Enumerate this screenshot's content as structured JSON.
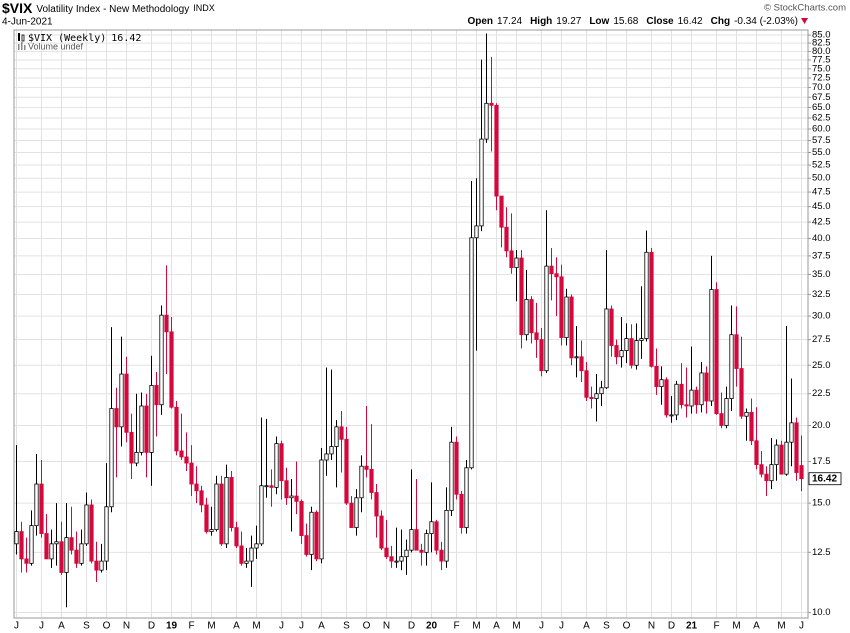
{
  "chart_data": {
    "type": "candlestick",
    "symbol": "$VIX",
    "title": "Volatility Index - New Methodology",
    "exchange": "INDX",
    "date": "4-Jun-2021",
    "credit": "© StockCharts.com",
    "series_label": "$VIX (Weekly)",
    "volume_label": "Volume undef",
    "quote_labels": {
      "open": "Open",
      "high": "High",
      "low": "Low",
      "close": "Close",
      "change": "Chg"
    },
    "change_label": "-0.34 (-2.03%)",
    "log_scale": true,
    "grid": true,
    "up_color": "#000000",
    "down_color": "#d4083c",
    "ylim": [
      9.8,
      86.6
    ],
    "yticks": [
      {
        "value": 10,
        "label": "10.0"
      },
      12.5,
      {
        "value": 15,
        "label": "15.0"
      },
      17.5,
      {
        "value": 20,
        "label": "20.0"
      },
      22.5,
      {
        "value": 25,
        "label": "25.0"
      },
      27.5,
      {
        "value": 30,
        "label": "30.0"
      },
      32.5,
      {
        "value": 35,
        "label": "35.0"
      },
      37.5,
      {
        "value": 40,
        "label": "40.0"
      },
      42.5,
      {
        "value": 45,
        "label": "45.0"
      },
      47.5,
      {
        "value": 50,
        "label": "50.0"
      },
      52.5,
      {
        "value": 55,
        "label": "55.0"
      },
      57.5,
      {
        "value": 60,
        "label": "60.0"
      },
      62.5,
      {
        "value": 65,
        "label": "65.0"
      },
      67.5,
      {
        "value": 70,
        "label": "70.0"
      },
      72.5,
      {
        "value": 75,
        "label": "75.0"
      },
      77.5,
      {
        "value": 80,
        "label": "80.0"
      },
      82.5,
      {
        "value": 85,
        "label": "85.0"
      }
    ],
    "categories": [
      "J",
      null,
      null,
      null,
      null,
      "J",
      null,
      null,
      null,
      "A",
      null,
      null,
      null,
      null,
      "S",
      null,
      null,
      null,
      "O",
      null,
      null,
      null,
      "N",
      null,
      null,
      null,
      null,
      "D",
      null,
      null,
      null,
      "19",
      null,
      null,
      null,
      "F",
      null,
      null,
      null,
      "M",
      null,
      null,
      null,
      null,
      "A",
      null,
      null,
      null,
      "M",
      null,
      null,
      null,
      null,
      "J",
      null,
      null,
      null,
      "J",
      null,
      null,
      null,
      "A",
      null,
      null,
      null,
      null,
      "S",
      null,
      null,
      null,
      "O",
      null,
      null,
      null,
      "N",
      null,
      null,
      null,
      null,
      "D",
      null,
      null,
      null,
      "20",
      null,
      null,
      null,
      null,
      "F",
      null,
      null,
      null,
      "M",
      null,
      null,
      null,
      "A",
      null,
      null,
      null,
      "M",
      null,
      null,
      null,
      null,
      "J",
      null,
      null,
      null,
      "J",
      null,
      null,
      null,
      null,
      "A",
      null,
      null,
      null,
      "S",
      null,
      null,
      null,
      "O",
      null,
      null,
      null,
      null,
      "N",
      null,
      null,
      null,
      "D",
      null,
      null,
      null,
      "21",
      null,
      null,
      null,
      null,
      "F",
      null,
      null,
      null,
      "M",
      null,
      null,
      null,
      "A",
      null,
      null,
      null,
      null,
      "M",
      null,
      null,
      null,
      "J"
    ],
    "open": [
      12.9,
      13.5,
      12.2,
      12.0,
      13.8,
      16.1,
      13.4,
      12.2,
      12.9,
      13.0,
      11.6,
      13.2,
      12.6,
      12.0,
      12.9,
      14.9,
      12.1,
      11.7,
      12.1,
      14.8,
      21.3,
      19.9,
      24.2,
      19.5,
      17.4,
      18.1,
      21.5,
      18.1,
      23.2,
      21.6,
      30.1,
      28.3,
      21.4,
      18.2,
      17.8,
      17.4,
      16.1,
      15.7,
      14.9,
      13.5,
      13.6,
      16.1,
      12.9,
      16.5,
      13.7,
      12.8,
      12.0,
      12.1,
      12.7,
      12.9,
      16.0,
      16.0,
      15.9,
      18.7,
      16.3,
      15.3,
      15.4,
      15.1,
      13.3,
      12.4,
      14.5,
      12.2,
      17.6,
      18.0,
      18.5,
      19.9,
      19.0,
      15.0,
      13.7,
      15.3,
      17.2,
      17.0,
      15.6,
      14.3,
      12.7,
      12.3,
      12.1,
      12.1,
      12.3,
      12.6,
      13.6,
      12.6,
      12.5,
      13.4,
      14.0,
      12.6,
      12.1,
      14.6,
      18.8,
      15.5,
      13.7,
      17.1,
      40.1,
      41.9,
      57.8,
      66.0,
      65.5,
      46.8,
      41.7,
      38.2,
      35.9,
      37.2,
      28.0,
      31.9,
      28.2,
      27.5,
      24.5,
      36.1,
      35.1,
      34.7,
      27.7,
      32.2,
      25.7,
      25.8,
      24.5,
      22.2,
      22.1,
      22.5,
      23.0,
      30.8,
      26.9,
      25.8,
      26.4,
      27.6,
      25.0,
      27.4,
      27.6,
      38.0,
      24.9,
      23.1,
      23.7,
      20.8,
      20.8,
      23.3,
      21.6,
      21.5,
      22.8,
      21.6,
      24.3,
      21.9,
      33.1,
      20.9,
      20.0,
      22.1,
      28.0,
      24.7,
      20.7,
      21.0,
      18.9,
      17.3,
      16.7,
      16.3,
      17.3,
      18.6,
      16.7,
      18.8,
      20.2,
      17.24
    ],
    "high": [
      18.6,
      14.0,
      13.2,
      14.6,
      18.0,
      17.6,
      14.4,
      13.6,
      15.0,
      14.0,
      15.0,
      14.8,
      13.5,
      13.6,
      15.6,
      15.2,
      13.0,
      12.9,
      17.4,
      28.8,
      23.0,
      27.8,
      25.8,
      20.9,
      22.5,
      22.6,
      22.5,
      25.9,
      24.4,
      31.2,
      36.2,
      29.9,
      21.9,
      20.9,
      19.5,
      18.6,
      17.2,
      16.0,
      15.3,
      14.8,
      16.6,
      16.6,
      17.3,
      16.9,
      14.0,
      13.5,
      12.7,
      13.3,
      13.8,
      20.6,
      20.5,
      17.0,
      19.2,
      18.9,
      17.1,
      16.4,
      17.5,
      15.2,
      13.9,
      14.8,
      14.6,
      18.4,
      24.8,
      24.6,
      20.4,
      21.1,
      19.9,
      15.4,
      15.8,
      17.9,
      21.5,
      20.1,
      16.1,
      14.6,
      14.1,
      12.8,
      13.7,
      13.6,
      13.1,
      17.0,
      16.4,
      12.9,
      13.6,
      16.2,
      14.1,
      13.0,
      15.9,
      19.9,
      19.2,
      15.7,
      17.6,
      49.5,
      50.0,
      77.6,
      85.5,
      78.4,
      66.0,
      46.8,
      44.9,
      43.9,
      38.3,
      38.3,
      35.6,
      32.3,
      31.5,
      28.7,
      44.4,
      38.6,
      37.3,
      36.3,
      33.2,
      32.5,
      28.9,
      27.4,
      25.3,
      23.1,
      24.2,
      23.6,
      38.3,
      31.2,
      27.5,
      29.9,
      29.2,
      29.1,
      29.2,
      33.5,
      41.2,
      38.6,
      26.6,
      24.9,
      23.9,
      22.3,
      23.6,
      25.2,
      24.8,
      26.8,
      23.1,
      25.3,
      24.9,
      37.5,
      34.0,
      22.6,
      23.1,
      31.2,
      31.1,
      27.8,
      21.3,
      22.1,
      21.4,
      18.2,
      17.2,
      19.1,
      19.0,
      18.9,
      28.9,
      23.8,
      20.6,
      19.27
    ],
    "low": [
      12.4,
      11.6,
      11.6,
      11.9,
      13.3,
      13.2,
      12.2,
      11.8,
      11.9,
      11.5,
      10.2,
      12.4,
      11.8,
      11.9,
      12.8,
      12.0,
      11.2,
      11.6,
      11.7,
      14.5,
      16.5,
      18.5,
      18.8,
      16.4,
      17.2,
      17.9,
      16.5,
      16.0,
      19.2,
      20.8,
      24.2,
      21.3,
      17.9,
      17.6,
      16.9,
      15.4,
      15.0,
      14.5,
      13.4,
      13.3,
      13.5,
      12.8,
      12.7,
      13.5,
      12.7,
      11.9,
      11.8,
      11.0,
      12.2,
      12.8,
      15.3,
      14.8,
      15.5,
      15.2,
      14.9,
      13.5,
      14.4,
      12.9,
      12.3,
      11.7,
      12.1,
      12.0,
      16.6,
      17.6,
      15.9,
      16.8,
      14.9,
      13.7,
      13.3,
      14.5,
      16.5,
      15.2,
      13.2,
      12.6,
      12.2,
      11.8,
      11.8,
      11.7,
      11.5,
      12.5,
      12.6,
      11.9,
      11.9,
      12.5,
      12.4,
      11.7,
      11.8,
      14.3,
      15.2,
      13.4,
      13.4,
      17.0,
      26.4,
      41.1,
      57.0,
      55.2,
      44.4,
      38.7,
      37.3,
      35.1,
      31.7,
      26.6,
      27.4,
      27.1,
      25.7,
      24.0,
      24.3,
      31.8,
      30.0,
      26.9,
      26.9,
      25.0,
      23.9,
      23.5,
      21.9,
      21.3,
      20.3,
      21.5,
      22.9,
      25.8,
      25.1,
      24.8,
      25.2,
      24.7,
      24.6,
      25.6,
      27.3,
      24.8,
      22.4,
      21.6,
      20.6,
      20.2,
      20.4,
      21.3,
      20.6,
      20.9,
      20.9,
      21.0,
      20.9,
      21.5,
      20.8,
      19.8,
      19.8,
      21.1,
      23.1,
      20.5,
      18.9,
      18.6,
      17.0,
      16.5,
      15.4,
      15.8,
      16.3,
      16.7,
      16.6,
      17.2,
      16.3,
      15.68
    ],
    "close": [
      13.5,
      12.2,
      12.0,
      13.8,
      16.1,
      13.4,
      12.2,
      12.9,
      13.0,
      11.6,
      13.2,
      12.6,
      12.0,
      12.9,
      14.9,
      12.1,
      11.7,
      12.1,
      14.8,
      21.3,
      19.9,
      24.2,
      19.5,
      17.4,
      18.1,
      21.5,
      18.1,
      23.2,
      21.6,
      30.1,
      28.3,
      21.4,
      18.2,
      17.8,
      17.4,
      16.1,
      15.7,
      14.9,
      13.5,
      13.6,
      16.1,
      12.9,
      16.5,
      13.7,
      12.8,
      12.0,
      12.1,
      12.7,
      12.9,
      16.0,
      16.0,
      15.9,
      18.7,
      16.3,
      15.3,
      15.4,
      15.1,
      13.3,
      12.4,
      14.5,
      12.2,
      17.6,
      18.0,
      18.5,
      19.9,
      19.0,
      15.0,
      13.7,
      15.3,
      17.2,
      17.0,
      15.6,
      14.3,
      12.7,
      12.3,
      12.1,
      12.1,
      12.3,
      12.6,
      13.6,
      12.6,
      12.5,
      13.4,
      14.0,
      12.6,
      12.1,
      14.6,
      18.8,
      15.5,
      13.7,
      17.1,
      40.1,
      41.9,
      57.8,
      66.0,
      65.5,
      46.8,
      41.7,
      38.2,
      35.9,
      37.2,
      28.0,
      31.9,
      28.2,
      27.5,
      24.5,
      36.1,
      35.1,
      34.7,
      27.7,
      32.2,
      25.7,
      25.8,
      24.5,
      22.2,
      22.1,
      22.5,
      23.0,
      30.8,
      26.9,
      25.8,
      26.4,
      27.6,
      25.0,
      27.4,
      27.6,
      38.0,
      24.9,
      23.1,
      23.7,
      20.8,
      20.8,
      23.3,
      21.6,
      21.5,
      22.8,
      21.6,
      24.3,
      21.9,
      33.1,
      20.9,
      20.0,
      22.1,
      28.0,
      24.7,
      20.7,
      21.0,
      18.9,
      17.3,
      16.7,
      16.3,
      17.3,
      18.6,
      16.7,
      18.8,
      20.2,
      16.8,
      16.42
    ]
  }
}
